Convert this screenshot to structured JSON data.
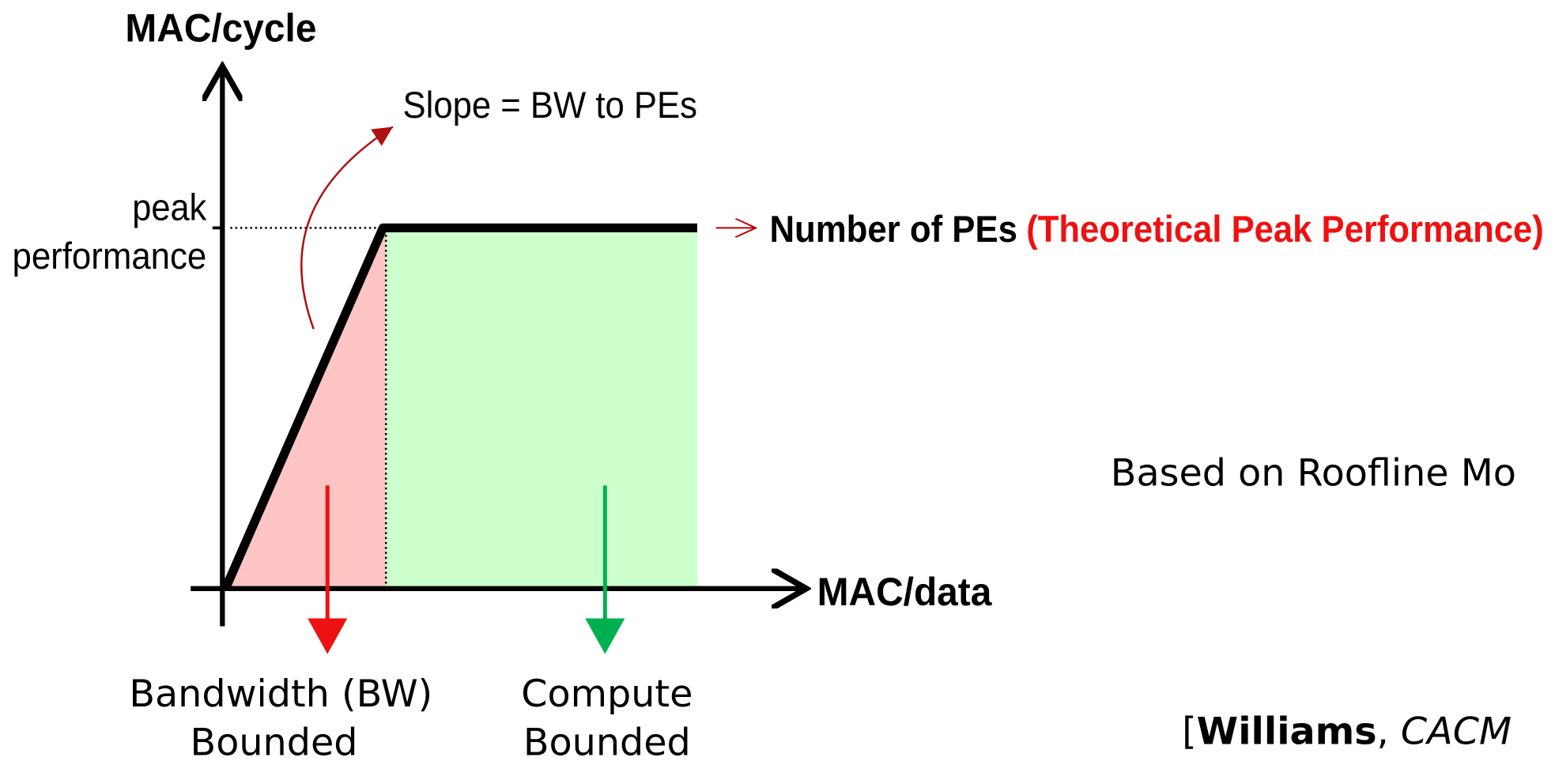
{
  "y_axis_label": "MAC/cycle",
  "x_axis_label": "MAC/data",
  "slope_label": "Slope = BW to PEs",
  "peak_label": [
    "peak",
    "performance"
  ],
  "roof_label": {
    "main": "Number of PEs",
    "note": "(Theoretical Peak Performance)"
  },
  "regions": [
    {
      "lines": [
        "Bandwidth (BW)",
        "Bounded"
      ]
    },
    {
      "lines": [
        "Compute",
        "Bounded"
      ]
    }
  ],
  "side_note": "Based on Roofline Mo",
  "citation": {
    "open": "[",
    "author": "Williams",
    "sep": ", ",
    "venue": "CACM"
  }
}
